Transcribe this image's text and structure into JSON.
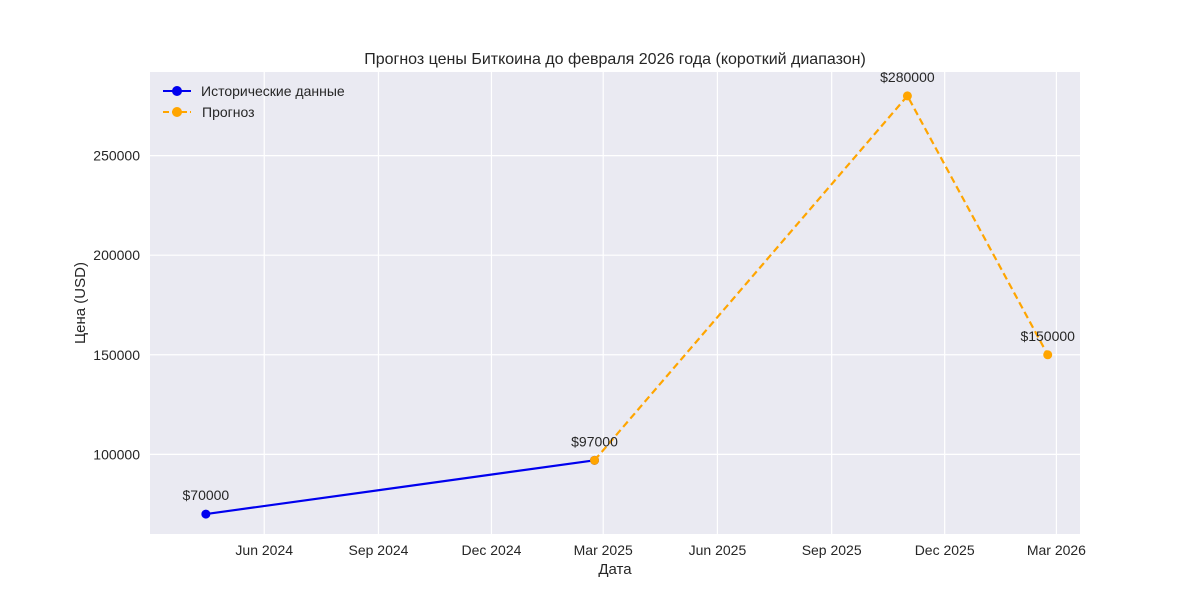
{
  "chart_data": {
    "type": "line",
    "title": "Прогноз цены Биткоина до февраля 2026 года (короткий диапазон)",
    "xlabel": "Дата",
    "ylabel": "Цена (USD)",
    "xlim": [
      "2024-03-01",
      "2026-03-20"
    ],
    "ylim": [
      60000,
      292000
    ],
    "x_ticks": [
      {
        "date": "2024-06-01",
        "label": "Jun 2024"
      },
      {
        "date": "2024-09-01",
        "label": "Sep 2024"
      },
      {
        "date": "2024-12-01",
        "label": "Dec 2024"
      },
      {
        "date": "2025-03-01",
        "label": "Mar 2025"
      },
      {
        "date": "2025-06-01",
        "label": "Jun 2025"
      },
      {
        "date": "2025-09-01",
        "label": "Sep 2025"
      },
      {
        "date": "2025-12-01",
        "label": "Dec 2025"
      },
      {
        "date": "2026-03-01",
        "label": "Mar 2026"
      }
    ],
    "y_ticks": [
      {
        "value": 100000,
        "label": "100000"
      },
      {
        "value": 150000,
        "label": "150000"
      },
      {
        "value": 200000,
        "label": "200000"
      },
      {
        "value": 250000,
        "label": "250000"
      }
    ],
    "grid": true,
    "legend_position": "top-left",
    "series": [
      {
        "name": "Исторические данные",
        "color": "#0000ee",
        "style": "solid",
        "points": [
          {
            "x": "2024-04-15",
            "y": 70000
          },
          {
            "x": "2025-02-22",
            "y": 97000
          }
        ]
      },
      {
        "name": "Прогноз",
        "color": "#ffa500",
        "style": "dashed",
        "points": [
          {
            "x": "2025-02-22",
            "y": 97000
          },
          {
            "x": "2025-11-01",
            "y": 280000
          },
          {
            "x": "2026-02-22",
            "y": 150000
          }
        ]
      }
    ],
    "annotations": [
      {
        "x": "2024-04-15",
        "y": 70000,
        "text": "$70000"
      },
      {
        "x": "2025-02-22",
        "y": 97000,
        "text": "$97000"
      },
      {
        "x": "2025-11-01",
        "y": 280000,
        "text": "$280000"
      },
      {
        "x": "2026-02-22",
        "y": 150000,
        "text": "$150000"
      }
    ]
  }
}
